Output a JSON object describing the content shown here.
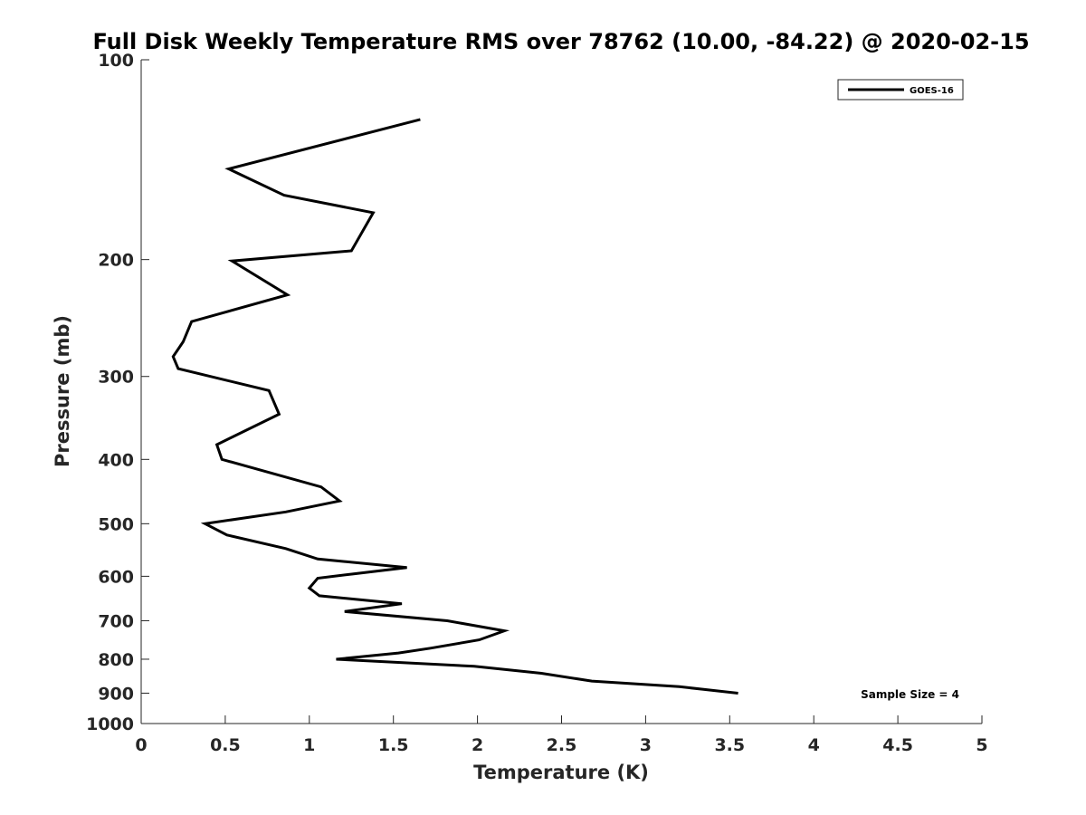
{
  "chart_data": {
    "type": "line",
    "title": "Full Disk Weekly Temperature RMS over 78762 (10.00, -84.22) @ 2020-02-15",
    "xlabel": "Temperature (K)",
    "ylabel": "Pressure (mb)",
    "xlim": [
      0,
      5
    ],
    "ylim": [
      100,
      1000
    ],
    "yscale": "log",
    "y_reversed": true,
    "grid": false,
    "legend_position": "top-right",
    "x_ticks": [
      0,
      0.5,
      1,
      1.5,
      2,
      2.5,
      3,
      3.5,
      4,
      4.5,
      5
    ],
    "x_tick_labels": [
      "0",
      "0.5",
      "1",
      "1.5",
      "2",
      "2.5",
      "3",
      "3.5",
      "4",
      "4.5",
      "5"
    ],
    "y_ticks": [
      100,
      200,
      300,
      400,
      500,
      600,
      700,
      800,
      900,
      1000
    ],
    "y_tick_labels": [
      "100",
      "200",
      "300",
      "400",
      "500",
      "600",
      "700",
      "800",
      "900",
      "1000"
    ],
    "series": [
      {
        "name": "GOES-16",
        "color": "#000000",
        "x": [
          1.66,
          0.52,
          0.85,
          1.38,
          1.25,
          0.54,
          0.87,
          0.3,
          0.25,
          0.19,
          0.22,
          0.76,
          0.82,
          0.45,
          0.48,
          1.07,
          1.18,
          0.86,
          0.38,
          0.51,
          0.86,
          1.05,
          1.58,
          1.05,
          1.0,
          1.06,
          1.55,
          1.21,
          1.82,
          2.16,
          2.01,
          1.72,
          1.53,
          1.16,
          1.98,
          2.38,
          2.68,
          3.2,
          3.55
        ],
        "y": [
          123,
          146,
          160,
          170,
          194,
          201,
          226,
          248,
          266,
          280,
          292,
          315,
          342,
          380,
          400,
          440,
          462,
          480,
          500,
          520,
          545,
          565,
          582,
          604,
          625,
          642,
          660,
          678,
          700,
          725,
          748,
          770,
          783,
          800,
          820,
          840,
          863,
          880,
          900
        ]
      }
    ],
    "annotations": [
      "Sample Size = 4"
    ]
  }
}
